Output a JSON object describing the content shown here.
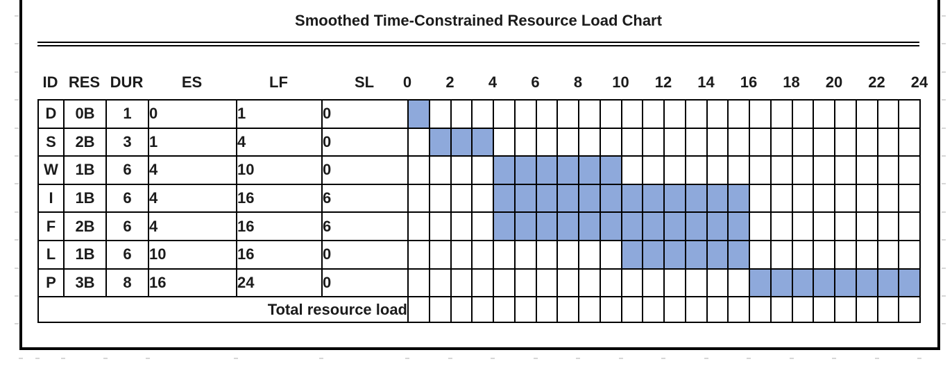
{
  "title": "Smoothed Time-Constrained Resource Load Chart",
  "chart_data": {
    "type": "table",
    "title": "Smoothed Time-Constrained Resource Load Chart",
    "description": "Gantt-style resource load chart: each activity row shades the timeline cells between its ES and LF.",
    "columns": [
      "ID",
      "RES",
      "DUR",
      "ES",
      "LF",
      "SL"
    ],
    "time_axis": {
      "min": 0,
      "max": 24,
      "tick_step": 2,
      "ticks": [
        0,
        2,
        4,
        6,
        8,
        10,
        12,
        14,
        16,
        18,
        20,
        22,
        24
      ]
    },
    "rows": [
      {
        "ID": "D",
        "RES": "0B",
        "DUR": "1",
        "ES": "0",
        "LF": "1",
        "SL": "0",
        "bar_start": 0,
        "bar_end": 1
      },
      {
        "ID": "S",
        "RES": "2B",
        "DUR": "3",
        "ES": "1",
        "LF": "4",
        "SL": "0",
        "bar_start": 1,
        "bar_end": 4
      },
      {
        "ID": "W",
        "RES": "1B",
        "DUR": "6",
        "ES": "4",
        "LF": "10",
        "SL": "0",
        "bar_start": 4,
        "bar_end": 10
      },
      {
        "ID": "I",
        "RES": "1B",
        "DUR": "6",
        "ES": "4",
        "LF": "16",
        "SL": "6",
        "bar_start": 4,
        "bar_end": 16
      },
      {
        "ID": "F",
        "RES": "2B",
        "DUR": "6",
        "ES": "4",
        "LF": "16",
        "SL": "6",
        "bar_start": 4,
        "bar_end": 16
      },
      {
        "ID": "L",
        "RES": "1B",
        "DUR": "6",
        "ES": "10",
        "LF": "16",
        "SL": "0",
        "bar_start": 10,
        "bar_end": 16
      },
      {
        "ID": "P",
        "RES": "3B",
        "DUR": "8",
        "ES": "16",
        "LF": "24",
        "SL": "0",
        "bar_start": 16,
        "bar_end": 24
      }
    ],
    "footer_label": "Total resource load",
    "colors": {
      "bar_fill": "#8EA9DB",
      "grid": "#000000",
      "text": "#1b1b1b"
    }
  }
}
